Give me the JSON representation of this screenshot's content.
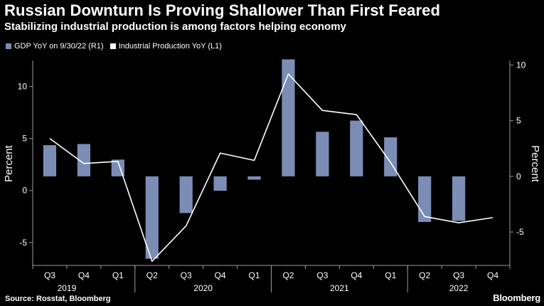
{
  "header": {
    "title": "Russian Downturn Is Proving Shallower Than First Feared",
    "subtitle": "Stabilizing industrial production is among factors helping economy"
  },
  "legend": [
    {
      "label": "GDP YoY on 9/30/22 (R1)",
      "color": "#7b8db5"
    },
    {
      "label": "Industrial Production YoY (L1)",
      "color": "#ffffff"
    }
  ],
  "footer": {
    "source": "Source: Rosstat, Bloomberg",
    "brand": "Bloomberg"
  },
  "chart_data": {
    "type": "bar",
    "categories": [
      "Q3",
      "Q4",
      "Q1",
      "Q2",
      "Q3",
      "Q4",
      "Q1",
      "Q2",
      "Q3",
      "Q4",
      "Q1",
      "Q2",
      "Q3",
      "Q4"
    ],
    "years": [
      {
        "label": "2019",
        "index": 0
      },
      {
        "label": "2020",
        "index": 3
      },
      {
        "label": "2021",
        "index": 7
      },
      {
        "label": "2022",
        "index": 11
      }
    ],
    "series": [
      {
        "name": "GDP YoY on 9/30/22 (R1)",
        "type": "bar",
        "axis": "right",
        "color": "#7b8db5",
        "values": [
          2.8,
          2.9,
          1.5,
          -7.4,
          -3.3,
          -1.3,
          -0.3,
          10.5,
          4.0,
          5.0,
          3.5,
          -4.1,
          -4.0,
          null
        ]
      },
      {
        "name": "Industrial Production YoY (L1)",
        "type": "line",
        "axis": "left",
        "color": "#ffffff",
        "values": [
          5.0,
          2.6,
          2.8,
          -6.8,
          -3.4,
          3.6,
          2.9,
          11.2,
          7.7,
          7.3,
          2.7,
          -2.5,
          -3.1,
          -2.6
        ]
      }
    ],
    "left_axis": {
      "label": "Percent",
      "ticks": [
        -5,
        0,
        5,
        10
      ],
      "range": [
        -7.2,
        12.5
      ]
    },
    "right_axis": {
      "label": "Percent",
      "ticks": [
        -5,
        0,
        5,
        10
      ],
      "range": [
        -8.0,
        10.4
      ]
    }
  }
}
